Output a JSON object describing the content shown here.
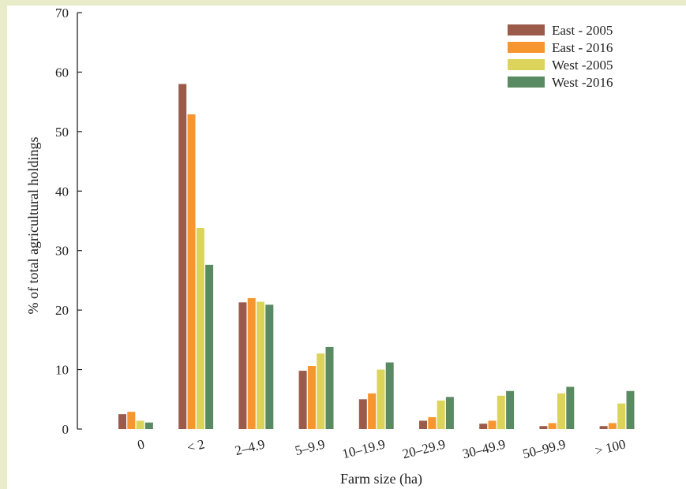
{
  "colors": {
    "east_2005": "#9b5a4a",
    "east_2016": "#f7952e",
    "west_2005": "#dcd45a",
    "west_2016": "#5a8a62",
    "page_background": "#e9ecc9"
  },
  "chart_data": {
    "type": "bar",
    "title": "",
    "xlabel": "Farm size (ha)",
    "ylabel": "% of total agricultural holdings",
    "ylim": [
      0,
      70
    ],
    "yticks": [
      0,
      10,
      20,
      30,
      40,
      50,
      60,
      70
    ],
    "legend_position": "top-right",
    "grid": false,
    "categories": [
      "0",
      "< 2",
      "2–4.9",
      "5–9.9",
      "10–19.9",
      "20–29.9",
      "30–49.9",
      "50–99.9",
      "> 100"
    ],
    "series": [
      {
        "name": "East - 2005",
        "color": "#9b5a4a",
        "values": [
          2.5,
          58.0,
          21.3,
          9.8,
          5.0,
          1.4,
          0.9,
          0.5,
          0.5
        ]
      },
      {
        "name": "East - 2016",
        "color": "#f7952e",
        "values": [
          2.9,
          52.9,
          22.0,
          10.6,
          6.0,
          2.0,
          1.4,
          1.0,
          1.0
        ]
      },
      {
        "name": "West -2005",
        "color": "#dcd45a",
        "values": [
          1.4,
          33.8,
          21.4,
          12.7,
          10.0,
          4.8,
          5.6,
          6.0,
          4.3
        ]
      },
      {
        "name": "West -2016",
        "color": "#5a8a62",
        "values": [
          1.1,
          27.6,
          20.9,
          13.8,
          11.2,
          5.4,
          6.4,
          7.1,
          6.4
        ]
      }
    ]
  }
}
